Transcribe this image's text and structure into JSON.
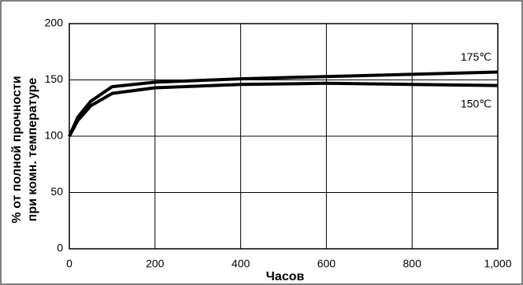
{
  "chart_data": {
    "type": "line",
    "x_label": "Часов",
    "y_label": [
      "% от полной прочности",
      "при комн. температуре"
    ],
    "x": [
      0,
      20,
      50,
      100,
      200,
      400,
      600,
      800,
      1000
    ],
    "series": [
      {
        "name": "175℃",
        "color": "#000000",
        "values": [
          100,
          117,
          131,
          144,
          148,
          151,
          153,
          155,
          157
        ]
      },
      {
        "name": "150℃",
        "color": "#000000",
        "values": [
          100,
          114,
          127,
          138,
          143,
          146,
          147,
          146,
          145
        ]
      }
    ],
    "xlim": [
      0,
      1000
    ],
    "xticks": [
      0,
      200,
      400,
      600,
      800,
      {
        "value": 1000,
        "label": "1,000"
      }
    ],
    "ylim": [
      0,
      200
    ],
    "yticks": [
      0,
      50,
      100,
      150,
      200
    ],
    "grid": true
  }
}
